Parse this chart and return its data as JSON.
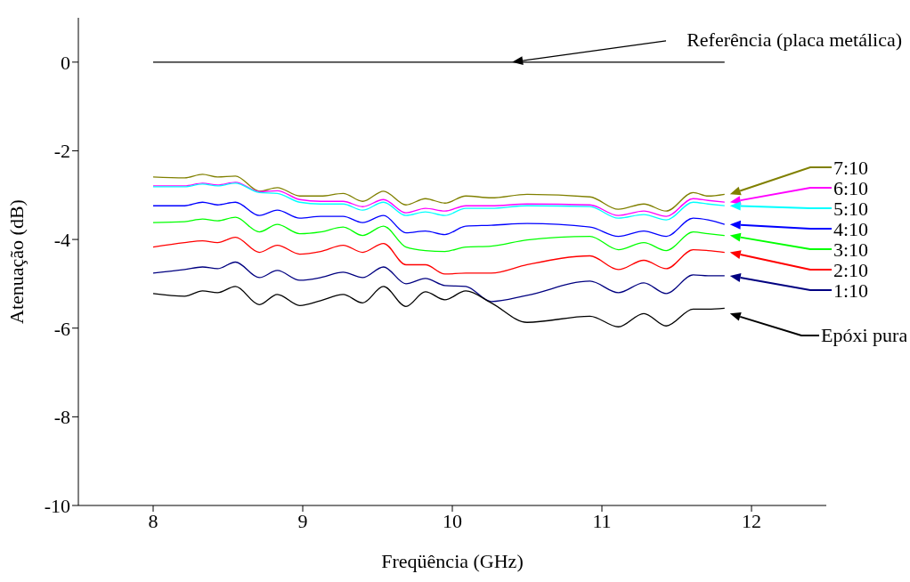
{
  "chart_data": {
    "type": "line",
    "xlabel": "Freqüência (GHz)",
    "ylabel": "Atenuação (dB)",
    "xlim": [
      7.5,
      12.5
    ],
    "xticks": [
      8,
      9,
      10,
      11,
      12
    ],
    "ylim": [
      -10,
      1
    ],
    "yticks": [
      0,
      -2,
      -4,
      -6,
      -8,
      -10
    ],
    "grid": false,
    "legend": "right",
    "marker": "none",
    "line_style": "solid",
    "x": [
      8.0,
      8.21,
      8.33,
      8.43,
      8.55,
      8.71,
      8.83,
      8.98,
      9.12,
      9.27,
      9.4,
      9.54,
      9.69,
      9.82,
      9.95,
      10.09,
      10.26,
      10.5,
      10.92,
      11.11,
      11.28,
      11.43,
      11.61,
      11.71,
      11.82
    ],
    "series": [
      {
        "name": "Referência (placa metálica)",
        "color": "#000000",
        "x": [
          8.0,
          11.82
        ],
        "values": [
          0,
          0
        ]
      },
      {
        "name": "7:10",
        "color": "#808000",
        "values": [
          -2.59,
          -2.61,
          -2.53,
          -2.59,
          -2.57,
          -2.91,
          -2.83,
          -3.02,
          -3.02,
          -2.96,
          -3.14,
          -2.91,
          -3.22,
          -3.08,
          -3.18,
          -3.02,
          -3.06,
          -2.98,
          -3.04,
          -3.32,
          -3.2,
          -3.36,
          -2.94,
          -3.02,
          -2.98
        ]
      },
      {
        "name": "6:10",
        "color": "#ff00ff",
        "values": [
          -2.79,
          -2.79,
          -2.73,
          -2.77,
          -2.71,
          -2.92,
          -2.9,
          -3.1,
          -3.14,
          -3.14,
          -3.26,
          -3.1,
          -3.4,
          -3.3,
          -3.36,
          -3.24,
          -3.24,
          -3.2,
          -3.22,
          -3.46,
          -3.36,
          -3.48,
          -3.08,
          -3.12,
          -3.16
        ]
      },
      {
        "name": "5:10",
        "color": "#00ffff",
        "values": [
          -2.81,
          -2.81,
          -2.75,
          -2.79,
          -2.73,
          -2.94,
          -2.96,
          -3.16,
          -3.2,
          -3.2,
          -3.34,
          -3.16,
          -3.46,
          -3.38,
          -3.46,
          -3.3,
          -3.3,
          -3.24,
          -3.26,
          -3.52,
          -3.44,
          -3.56,
          -3.16,
          -3.2,
          -3.24
        ]
      },
      {
        "name": "4:10",
        "color": "#0000ff",
        "values": [
          -3.24,
          -3.24,
          -3.16,
          -3.22,
          -3.16,
          -3.46,
          -3.34,
          -3.52,
          -3.48,
          -3.48,
          -3.62,
          -3.46,
          -3.85,
          -3.81,
          -3.89,
          -3.7,
          -3.68,
          -3.64,
          -3.72,
          -3.93,
          -3.81,
          -3.93,
          -3.52,
          -3.56,
          -3.66
        ]
      },
      {
        "name": "3:10",
        "color": "#00ff00",
        "values": [
          -3.62,
          -3.6,
          -3.54,
          -3.58,
          -3.5,
          -3.83,
          -3.66,
          -3.87,
          -3.83,
          -3.72,
          -3.91,
          -3.7,
          -4.17,
          -4.25,
          -4.27,
          -4.17,
          -4.15,
          -4.01,
          -3.93,
          -4.23,
          -4.07,
          -4.25,
          -3.83,
          -3.87,
          -3.91
        ]
      },
      {
        "name": "2:10",
        "color": "#ff0000",
        "values": [
          -4.17,
          -4.07,
          -4.03,
          -4.07,
          -3.95,
          -4.29,
          -4.13,
          -4.33,
          -4.27,
          -4.13,
          -4.29,
          -4.09,
          -4.57,
          -4.57,
          -4.78,
          -4.76,
          -4.76,
          -4.57,
          -4.37,
          -4.68,
          -4.47,
          -4.66,
          -4.23,
          -4.25,
          -4.29
        ]
      },
      {
        "name": "1:10",
        "color": "#000080",
        "values": [
          -4.76,
          -4.68,
          -4.62,
          -4.66,
          -4.51,
          -4.86,
          -4.7,
          -4.92,
          -4.86,
          -4.74,
          -4.86,
          -4.62,
          -5.0,
          -4.88,
          -5.04,
          -5.06,
          -5.4,
          -5.26,
          -4.94,
          -5.2,
          -4.98,
          -5.22,
          -4.8,
          -4.82,
          -4.82
        ]
      },
      {
        "name": "Epóxi pura",
        "color": "#000000",
        "values": [
          -5.22,
          -5.28,
          -5.16,
          -5.2,
          -5.06,
          -5.47,
          -5.24,
          -5.49,
          -5.38,
          -5.24,
          -5.43,
          -5.06,
          -5.51,
          -5.18,
          -5.36,
          -5.16,
          -5.43,
          -5.87,
          -5.73,
          -5.97,
          -5.67,
          -5.95,
          -5.57,
          -5.57,
          -5.55
        ]
      }
    ]
  }
}
